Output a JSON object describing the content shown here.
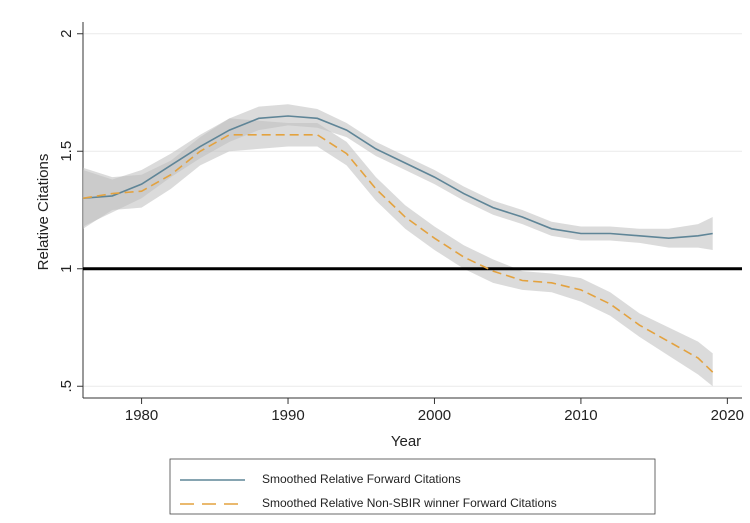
{
  "chart_data": {
    "type": "line",
    "x_label": "Year",
    "y_label": "Relative Citations",
    "x": [
      1976,
      1978,
      1980,
      1982,
      1984,
      1986,
      1988,
      1990,
      1992,
      1994,
      1996,
      1998,
      2000,
      2002,
      2004,
      2006,
      2008,
      2010,
      2012,
      2014,
      2016,
      2018,
      2019
    ],
    "series": [
      {
        "name": "Smoothed Relative Forward Citations",
        "color": "#5f8597",
        "dash": false,
        "values": [
          1.3,
          1.31,
          1.36,
          1.44,
          1.52,
          1.59,
          1.64,
          1.65,
          1.64,
          1.59,
          1.51,
          1.45,
          1.39,
          1.32,
          1.26,
          1.22,
          1.17,
          1.15,
          1.15,
          1.14,
          1.13,
          1.14,
          1.15
        ],
        "ci_lower": [
          1.18,
          1.24,
          1.3,
          1.39,
          1.47,
          1.54,
          1.59,
          1.61,
          1.6,
          1.56,
          1.48,
          1.42,
          1.36,
          1.29,
          1.23,
          1.19,
          1.14,
          1.12,
          1.12,
          1.11,
          1.09,
          1.09,
          1.08
        ],
        "ci_upper": [
          1.42,
          1.38,
          1.42,
          1.49,
          1.57,
          1.64,
          1.69,
          1.7,
          1.68,
          1.62,
          1.54,
          1.48,
          1.42,
          1.35,
          1.29,
          1.25,
          1.2,
          1.18,
          1.18,
          1.17,
          1.17,
          1.19,
          1.22
        ]
      },
      {
        "name": "Smoothed Relative Non-SBIR winner Forward Citations",
        "color": "#e3a23f",
        "dash": true,
        "values": [
          1.3,
          1.32,
          1.33,
          1.4,
          1.5,
          1.57,
          1.57,
          1.57,
          1.57,
          1.49,
          1.34,
          1.22,
          1.13,
          1.05,
          0.99,
          0.95,
          0.94,
          0.91,
          0.85,
          0.76,
          0.69,
          0.62,
          0.56
        ],
        "ci_lower": [
          1.17,
          1.25,
          1.26,
          1.34,
          1.44,
          1.5,
          1.51,
          1.52,
          1.52,
          1.44,
          1.29,
          1.17,
          1.08,
          1.0,
          0.94,
          0.91,
          0.9,
          0.86,
          0.8,
          0.71,
          0.63,
          0.55,
          0.5
        ],
        "ci_upper": [
          1.43,
          1.39,
          1.4,
          1.46,
          1.56,
          1.64,
          1.63,
          1.62,
          1.62,
          1.54,
          1.39,
          1.27,
          1.18,
          1.1,
          1.04,
          0.99,
          0.98,
          0.96,
          0.9,
          0.81,
          0.75,
          0.69,
          0.64
        ]
      }
    ],
    "xlim": [
      1976,
      2021
    ],
    "xticks": [
      1980,
      1990,
      2000,
      2010,
      2020
    ],
    "ylim": [
      0.45,
      2.05
    ],
    "yticks": [
      {
        "value": 0.5,
        "label": ".5"
      },
      1,
      1.5,
      2
    ],
    "reference_line": 1,
    "grid": true
  }
}
